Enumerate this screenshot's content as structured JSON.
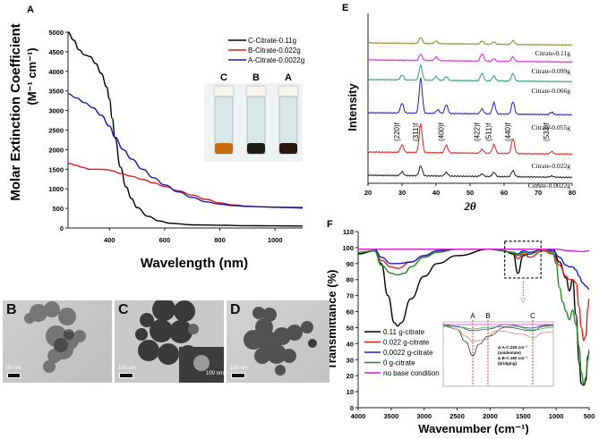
{
  "panels": {
    "A": "A",
    "B": "B",
    "C": "C",
    "D": "D",
    "E": "E",
    "F": "F"
  },
  "chart_data": [
    {
      "id": "A",
      "type": "line",
      "title": "",
      "xlabel": "Wavelength (nm)",
      "ylabel_line1": "Molar  Extinction  Coefficient",
      "ylabel_line2": "(M⁻¹ cm⁻¹)",
      "xlim": [
        250,
        1100
      ],
      "ylim": [
        0,
        5000
      ],
      "xticks": [
        400,
        600,
        800,
        1000
      ],
      "yticks": [
        0,
        500,
        1000,
        1500,
        2000,
        2500,
        3000,
        3500,
        4000,
        4500,
        5000
      ],
      "legend_position": "top-right",
      "series": [
        {
          "name": "C-Citrate-0.11g",
          "color": "#000000",
          "x": [
            250,
            270,
            290,
            310,
            330,
            350,
            370,
            390,
            400,
            410,
            420,
            440,
            460,
            480,
            500,
            540,
            580,
            620,
            700,
            800,
            900,
            1000,
            1100
          ],
          "y": [
            5000,
            4800,
            4550,
            4420,
            4380,
            4200,
            3950,
            3600,
            3300,
            2800,
            2300,
            1550,
            1050,
            750,
            520,
            300,
            180,
            120,
            80,
            70,
            60,
            55,
            50
          ]
        },
        {
          "name": "B-Citrate-0.022g",
          "color": "#d42020",
          "x": [
            250,
            280,
            300,
            330,
            360,
            390,
            410,
            440,
            480,
            520,
            560,
            600,
            650,
            700,
            750,
            800,
            850,
            900,
            950,
            1000,
            1050,
            1100
          ],
          "y": [
            1650,
            1600,
            1550,
            1500,
            1500,
            1490,
            1460,
            1390,
            1320,
            1240,
            1150,
            1060,
            950,
            840,
            730,
            640,
            590,
            560,
            540,
            535,
            530,
            530
          ]
        },
        {
          "name": "A-Citrate-0.0022g",
          "color": "#1a1aa8",
          "x": [
            250,
            280,
            310,
            340,
            370,
            400,
            420,
            450,
            480,
            520,
            560,
            600,
            650,
            700,
            750,
            800,
            850,
            900,
            950,
            1000,
            1050,
            1100
          ],
          "y": [
            3430,
            3320,
            3200,
            3070,
            2880,
            2600,
            2320,
            2000,
            1760,
            1500,
            1280,
            1100,
            920,
            780,
            670,
            610,
            570,
            550,
            540,
            530,
            520,
            510
          ]
        }
      ],
      "inset_photo": {
        "labels": [
          "C",
          "B",
          "A"
        ],
        "liquid_colors": [
          "#c86a10",
          "#1d1d1a",
          "#2a160f"
        ]
      }
    },
    {
      "id": "E",
      "type": "line",
      "xlabel": "2θ",
      "ylabel": "Intensity",
      "xlim": [
        20,
        80
      ],
      "xticks": [
        20,
        30,
        40,
        50,
        60,
        70,
        80
      ],
      "peak_labels": [
        {
          "label": "(220)f",
          "x": 30
        },
        {
          "label": "(311)f",
          "x": 35.5
        },
        {
          "label": "(400)f",
          "x": 43
        },
        {
          "label": "(422)f",
          "x": 53.5
        },
        {
          "label": "(511)f",
          "x": 57
        },
        {
          "label": "(440)f",
          "x": 62.6
        },
        {
          "label": "(533)f",
          "x": 74
        }
      ],
      "series": [
        {
          "name": "Citrate-0.11g",
          "color": "#8a8a2a",
          "offset": 5,
          "peaks": [
            [
              35.5,
              0.5
            ],
            [
              40,
              0.2
            ],
            [
              53.5,
              0.25
            ],
            [
              57,
              0.2
            ],
            [
              62.6,
              0.3
            ]
          ]
        },
        {
          "name": "Citrate-0.099g",
          "color": "#e020d0",
          "offset": 4,
          "peaks": [
            [
              35.5,
              0.5
            ],
            [
              40,
              0.3
            ],
            [
              53.5,
              0.6
            ],
            [
              57,
              0.2
            ],
            [
              62.6,
              0.35
            ]
          ]
        },
        {
          "name": "Citrate-0.066g",
          "color": "#2a9a8a",
          "offset": 3,
          "peaks": [
            [
              30,
              0.4
            ],
            [
              35.5,
              1.2
            ],
            [
              40,
              0.3
            ],
            [
              43,
              0.3
            ],
            [
              53.5,
              0.6
            ],
            [
              57,
              0.4
            ],
            [
              62.6,
              0.6
            ]
          ]
        },
        {
          "name": "Citrate-0.055g",
          "color": "#2020c0",
          "offset": 2,
          "peaks": [
            [
              30,
              0.8
            ],
            [
              35.5,
              2.8
            ],
            [
              40.5,
              0.3
            ],
            [
              43,
              0.7
            ],
            [
              53.5,
              0.4
            ],
            [
              57,
              0.9
            ],
            [
              62.6,
              1.0
            ],
            [
              74,
              0.2
            ]
          ]
        },
        {
          "name": "Citrate-0.022g",
          "color": "#e02020",
          "offset": 1,
          "peaks": [
            [
              30,
              0.6
            ],
            [
              35.5,
              2.3
            ],
            [
              43,
              0.6
            ],
            [
              53.5,
              0.3
            ],
            [
              57,
              0.7
            ],
            [
              62.6,
              1.2
            ],
            [
              74,
              0.2
            ]
          ]
        },
        {
          "name": "Citrate-0.0022g",
          "color": "#202020",
          "offset": 0,
          "peaks": [
            [
              30,
              0.3
            ],
            [
              35.5,
              0.8
            ],
            [
              43,
              0.3
            ],
            [
              53.5,
              0.2
            ],
            [
              57,
              0.35
            ],
            [
              62.6,
              0.5
            ],
            [
              74,
              0.1
            ]
          ]
        }
      ]
    },
    {
      "id": "F",
      "type": "line",
      "xlabel": "Wavenumber (cm⁻¹)",
      "ylabel": "Transmittance  (%)",
      "xlim": [
        4000,
        500
      ],
      "ylim": [
        0,
        110
      ],
      "xticks": [
        4000,
        3500,
        3000,
        2500,
        2000,
        1500,
        1000,
        500
      ],
      "yticks": [
        0,
        10,
        20,
        30,
        40,
        50,
        60,
        70,
        80,
        90,
        100,
        110
      ],
      "legend_position": "bottom-left",
      "series": [
        {
          "name": "0.11 g-citrate",
          "color": "#000000",
          "x": [
            4000,
            3750,
            3650,
            3550,
            3450,
            3400,
            3350,
            3200,
            3000,
            2800,
            2500,
            2000,
            1800,
            1650,
            1580,
            1500,
            1400,
            1200,
            1050,
            950,
            850,
            800,
            750,
            700,
            650,
            620,
            580,
            550,
            520,
            500
          ],
          "y": [
            96,
            98,
            90,
            70,
            53,
            51,
            53,
            68,
            82,
            90,
            95,
            99,
            98,
            96,
            84,
            95,
            96,
            99,
            99,
            91,
            81,
            73,
            80,
            58,
            28,
            15,
            14,
            17,
            32,
            35
          ]
        },
        {
          "name": "0.022 g-citrate",
          "color": "#e02020",
          "x": [
            4000,
            3750,
            3650,
            3500,
            3400,
            3200,
            3000,
            2800,
            2500,
            2000,
            1650,
            1580,
            1500,
            1400,
            1200,
            1050,
            950,
            850,
            800,
            750,
            700,
            650,
            620,
            580,
            550,
            520,
            500
          ],
          "y": [
            97,
            98,
            92,
            88,
            87,
            91,
            95,
            98,
            99,
            99,
            97,
            93,
            96,
            94,
            98,
            96,
            89,
            82,
            80,
            80,
            78,
            63,
            50,
            42,
            45,
            62,
            68
          ]
        },
        {
          "name": "0.0022 g-citrate",
          "color": "#2020c0",
          "x": [
            4000,
            3750,
            3650,
            3500,
            3400,
            3200,
            3000,
            2800,
            2500,
            2000,
            1650,
            1580,
            1500,
            1400,
            1200,
            1050,
            950,
            850,
            800,
            750,
            700,
            650,
            600,
            550,
            500
          ],
          "y": [
            99,
            99,
            94,
            90,
            90,
            91,
            95,
            98,
            99,
            99,
            97,
            96,
            98,
            97,
            99,
            98,
            94,
            89,
            88,
            88,
            86,
            82,
            78,
            76,
            74
          ]
        },
        {
          "name": "0 g-citrate",
          "color": "#208a20",
          "x": [
            4000,
            3750,
            3650,
            3500,
            3400,
            3300,
            3200,
            3000,
            2800,
            2500,
            2000,
            1650,
            1580,
            1500,
            1400,
            1200,
            1050,
            1000,
            950,
            900,
            850,
            800,
            750,
            700,
            650,
            620,
            580,
            550,
            520,
            500
          ],
          "y": [
            97,
            98,
            89,
            84,
            83,
            84,
            88,
            94,
            97,
            99,
            99,
            97,
            95,
            97,
            96,
            99,
            97,
            90,
            75,
            66,
            60,
            55,
            61,
            52,
            38,
            22,
            15,
            19,
            30,
            36
          ]
        },
        {
          "name": "no base condition",
          "color": "#d020d0",
          "x": [
            4000,
            3000,
            2000,
            1000,
            800,
            600,
            500
          ],
          "y": [
            99,
            99,
            99,
            99,
            98,
            97.5,
            98
          ]
        }
      ],
      "inset": {
        "markers": [
          "A",
          "B",
          "C"
        ],
        "annotation_lines": [
          "Δ A-C:225 cm⁻¹",
          "(unidentate)",
          "Δ B-C:160 cm⁻¹",
          "(bridging)"
        ]
      }
    }
  ],
  "tem": [
    {
      "label": "B",
      "scale": "50 nm"
    },
    {
      "label": "C",
      "scale": "100 nm",
      "inset_scale": "100 nm"
    },
    {
      "label": "D",
      "scale": "100 nm"
    }
  ]
}
